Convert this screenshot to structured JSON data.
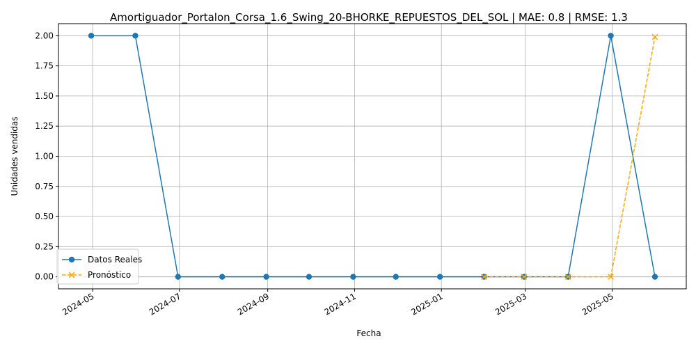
{
  "chart_data": {
    "type": "line",
    "title": "Amortiguador_Portalon_Corsa_1.6_Swing_20-BHORKE_REPUESTOS_DEL_SOL | MAE: 0.8 | RMSE: 1.3",
    "xlabel": "Fecha",
    "ylabel": "Unidades vendidas",
    "x_type": "date",
    "xlim": [
      "2024-04-07",
      "2025-06-22"
    ],
    "ylim": [
      -0.1,
      2.1
    ],
    "x_ticks": [
      {
        "date": "2024-05-01",
        "label": "2024-05"
      },
      {
        "date": "2024-07-01",
        "label": "2024-07"
      },
      {
        "date": "2024-09-01",
        "label": "2024-09"
      },
      {
        "date": "2024-11-01",
        "label": "2024-11"
      },
      {
        "date": "2025-01-01",
        "label": "2025-01"
      },
      {
        "date": "2025-03-01",
        "label": "2025-03"
      },
      {
        "date": "2025-05-01",
        "label": "2025-05"
      }
    ],
    "y_ticks": [
      {
        "value": 0.0,
        "label": "0.00"
      },
      {
        "value": 0.25,
        "label": "0.25"
      },
      {
        "value": 0.5,
        "label": "0.50"
      },
      {
        "value": 0.75,
        "label": "0.75"
      },
      {
        "value": 1.0,
        "label": "1.00"
      },
      {
        "value": 1.25,
        "label": "1.25"
      },
      {
        "value": 1.5,
        "label": "1.50"
      },
      {
        "value": 1.75,
        "label": "1.75"
      },
      {
        "value": 2.0,
        "label": "2.00"
      }
    ],
    "grid": true,
    "legend": {
      "position": "lower-left"
    },
    "series": [
      {
        "name": "Datos Reales",
        "color": "#1f77b4",
        "line_style": "solid",
        "marker": "circle",
        "points": [
          {
            "x": "2024-04-30",
            "y": 2
          },
          {
            "x": "2024-05-31",
            "y": 2
          },
          {
            "x": "2024-06-30",
            "y": 0
          },
          {
            "x": "2024-07-31",
            "y": 0
          },
          {
            "x": "2024-08-31",
            "y": 0
          },
          {
            "x": "2024-09-30",
            "y": 0
          },
          {
            "x": "2024-10-31",
            "y": 0
          },
          {
            "x": "2024-11-30",
            "y": 0
          },
          {
            "x": "2024-12-31",
            "y": 0
          },
          {
            "x": "2025-01-31",
            "y": 0
          },
          {
            "x": "2025-02-28",
            "y": 0
          },
          {
            "x": "2025-03-31",
            "y": 0
          },
          {
            "x": "2025-04-30",
            "y": 2
          },
          {
            "x": "2025-05-31",
            "y": 0
          }
        ]
      },
      {
        "name": "Pronóstico",
        "color": "#ffa500",
        "line_style": "dashed",
        "marker": "x",
        "points": [
          {
            "x": "2025-01-31",
            "y": 0
          },
          {
            "x": "2025-02-28",
            "y": 0
          },
          {
            "x": "2025-03-31",
            "y": 0
          },
          {
            "x": "2025-04-30",
            "y": 0
          },
          {
            "x": "2025-05-31",
            "y": 1.99
          }
        ]
      }
    ]
  }
}
